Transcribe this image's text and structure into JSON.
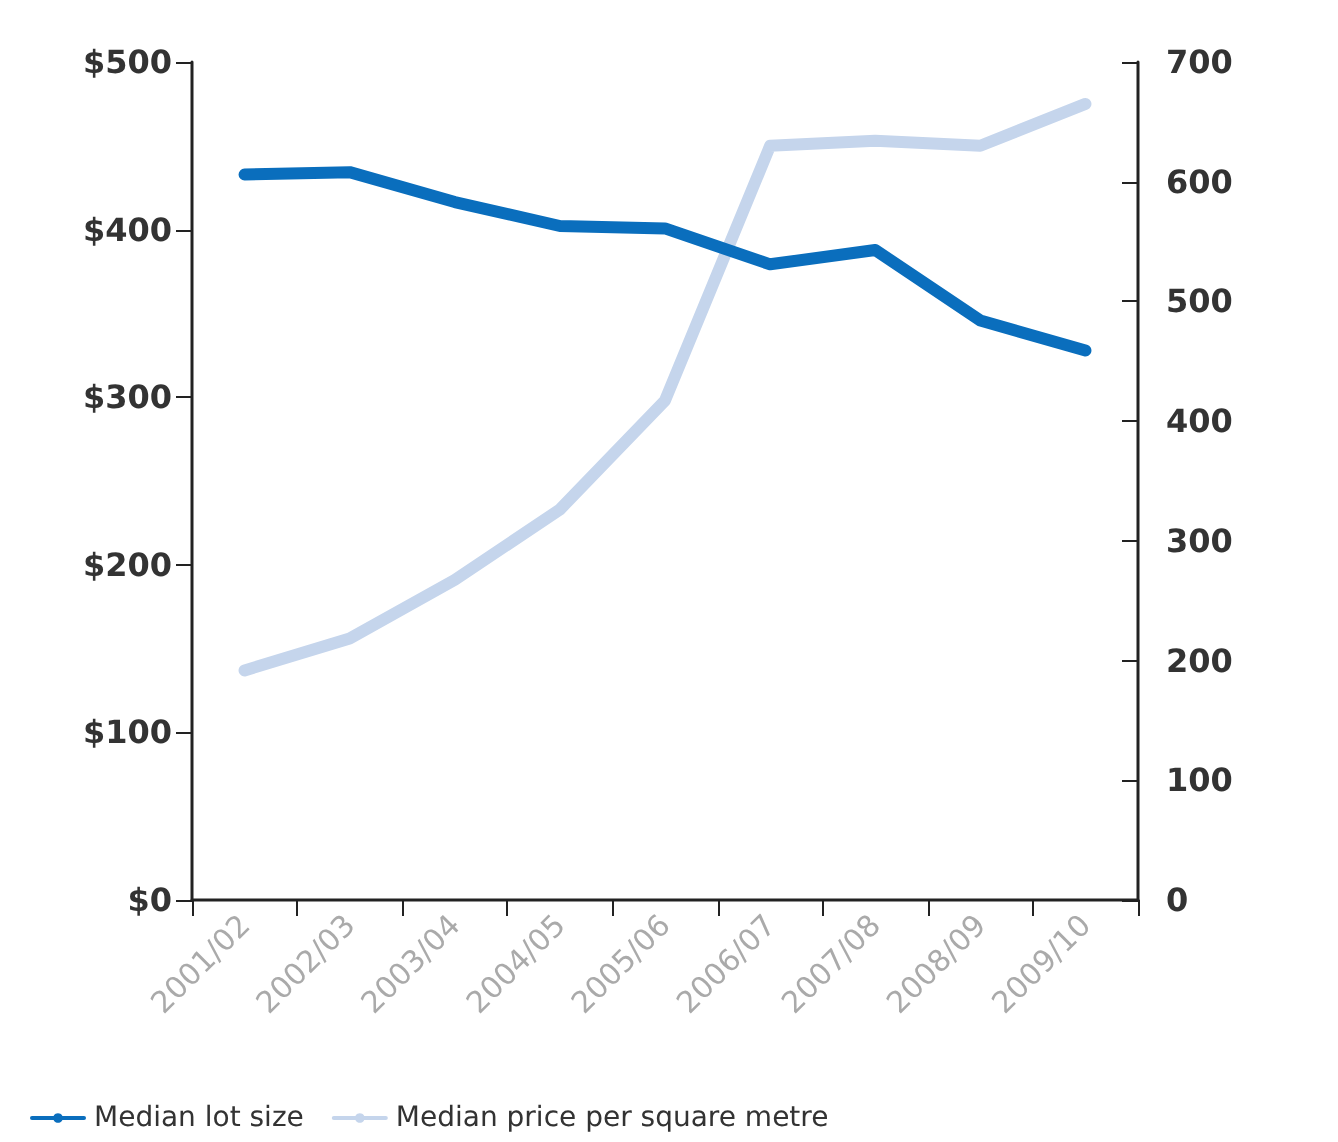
{
  "chart_data": {
    "type": "line",
    "categories": [
      "2001/02",
      "2002/03",
      "2003/04",
      "2004/05",
      "2005/06",
      "2006/07",
      "2007/08",
      "2008/09",
      "2009/10"
    ],
    "series": [
      {
        "name": "Median lot size",
        "color": "#0a6ebd",
        "axis": "y2",
        "values": [
          606,
          608,
          583,
          563,
          561,
          531,
          543,
          484,
          459
        ]
      },
      {
        "name": "Median price per square metre",
        "color": "#c5d5ec",
        "values": [
          137,
          156,
          191,
          233,
          298,
          450,
          453,
          450,
          475
        ]
      }
    ],
    "ylim": [
      0,
      500
    ],
    "yticks": [
      {
        "value": 0,
        "label": "$0"
      },
      {
        "value": 100,
        "label": "$100"
      },
      {
        "value": 200,
        "label": "$200"
      },
      {
        "value": 300,
        "label": "$300"
      },
      {
        "value": 400,
        "label": "$400"
      },
      {
        "value": 500,
        "label": "$500"
      }
    ],
    "y2lim": [
      0,
      700
    ],
    "y2ticks": [
      0,
      100,
      200,
      300,
      400,
      500,
      600,
      700
    ],
    "grid": false,
    "legend": "bottom left",
    "marker": "none",
    "line_style": "solid"
  }
}
